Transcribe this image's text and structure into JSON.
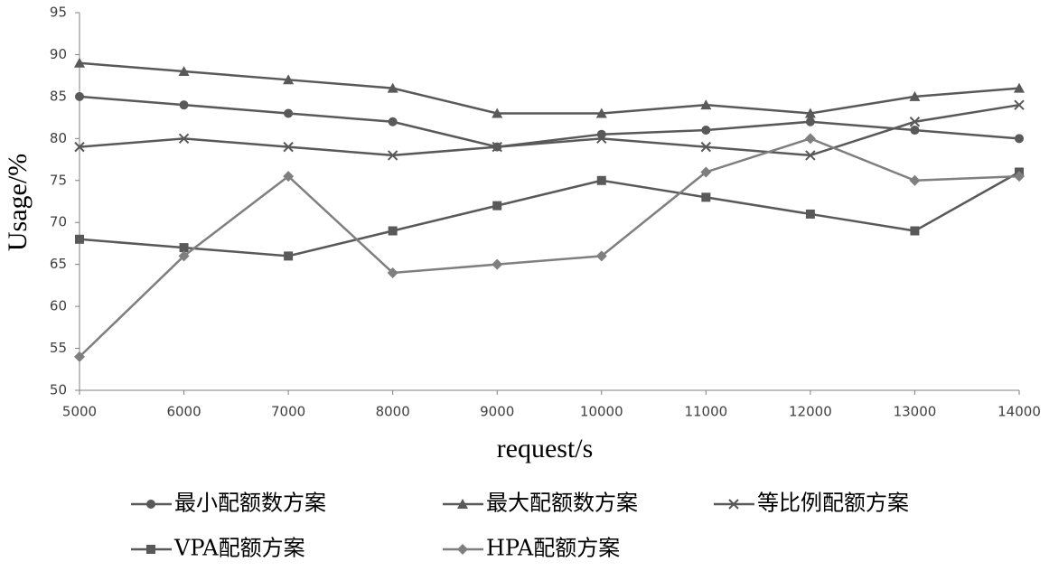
{
  "chart_data": {
    "type": "line",
    "xlabel": "request/s",
    "ylabel": "Usage/%",
    "x": [
      5000,
      6000,
      7000,
      8000,
      9000,
      10000,
      11000,
      12000,
      13000,
      14000
    ],
    "xlim": [
      5000,
      14000
    ],
    "xticks": [
      5000,
      6000,
      7000,
      8000,
      9000,
      10000,
      11000,
      12000,
      13000,
      14000
    ],
    "ylim": [
      50,
      95
    ],
    "yticks": [
      50,
      55,
      60,
      65,
      70,
      75,
      80,
      85,
      90,
      95
    ],
    "grid": false,
    "legend": "bottom",
    "series": [
      {
        "name": "最小配额数方案",
        "color": "#595959",
        "marker": "circle",
        "values": [
          85,
          84,
          83,
          82,
          79,
          80.5,
          81,
          82,
          81,
          80
        ]
      },
      {
        "name": "最大配额数方案",
        "color": "#595959",
        "marker": "triangle",
        "values": [
          89,
          88,
          87,
          86,
          83,
          83,
          84,
          83,
          85,
          86
        ]
      },
      {
        "name": "等比例配额方案",
        "color": "#595959",
        "marker": "x",
        "values": [
          79,
          80,
          79,
          78,
          79,
          80,
          79,
          78,
          82,
          84
        ]
      },
      {
        "name": "VPA配额方案",
        "color": "#595959",
        "marker": "square",
        "values": [
          68,
          67,
          66,
          69,
          72,
          75,
          73,
          71,
          69,
          76
        ]
      },
      {
        "name": "HPA配额方案",
        "color": "#7f7f7f",
        "marker": "diamond",
        "values": [
          54,
          66,
          75.5,
          64,
          65,
          66,
          76,
          80,
          75,
          75.5
        ]
      }
    ]
  }
}
